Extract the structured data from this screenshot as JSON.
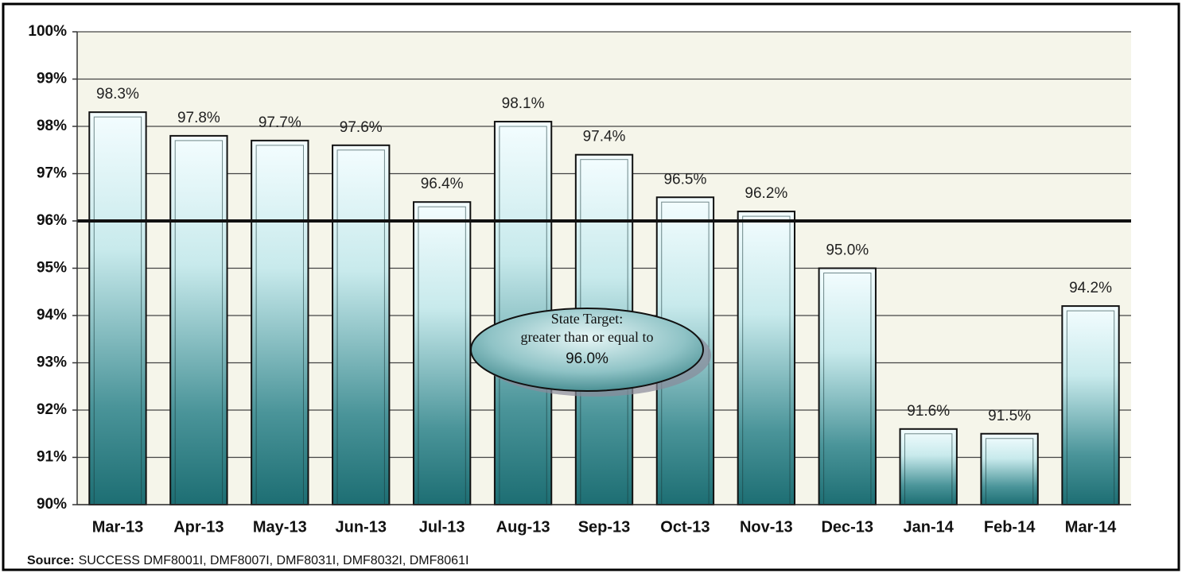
{
  "chart_data": {
    "type": "bar",
    "categories": [
      "Mar-13",
      "Apr-13",
      "May-13",
      "Jun-13",
      "Jul-13",
      "Aug-13",
      "Sep-13",
      "Oct-13",
      "Nov-13",
      "Dec-13",
      "Jan-14",
      "Feb-14",
      "Mar-14"
    ],
    "values": [
      98.3,
      97.8,
      97.7,
      97.6,
      96.4,
      98.1,
      97.4,
      96.5,
      96.2,
      95.0,
      91.6,
      91.5,
      94.2
    ],
    "value_labels": [
      "98.3%",
      "97.8%",
      "97.7%",
      "97.6%",
      "96.4%",
      "98.1%",
      "97.4%",
      "96.5%",
      "96.2%",
      "95.0%",
      "91.6%",
      "91.5%",
      "94.2%"
    ],
    "color": "#1d6e73",
    "ylim": [
      90,
      100
    ],
    "yticks": [
      {
        "value": 90,
        "label": "90%"
      },
      {
        "value": 91,
        "label": "91%"
      },
      {
        "value": 92,
        "label": "92%"
      },
      {
        "value": 93,
        "label": "93%"
      },
      {
        "value": 94,
        "label": "94%"
      },
      {
        "value": 95,
        "label": "95%"
      },
      {
        "value": 96,
        "label": "96%"
      },
      {
        "value": 97,
        "label": "97%"
      },
      {
        "value": 98,
        "label": "98%"
      },
      {
        "value": 99,
        "label": "99%"
      },
      {
        "value": 100,
        "label": "100%"
      }
    ],
    "grid": true,
    "target_line": 96,
    "annotation": [
      "State Target:",
      "greater than or equal to",
      "96.0%"
    ],
    "source_label": "Source:",
    "source_text": "SUCCESS DMF8001I, DMF8007I, DMF8031I, DMF8032I, DMF8061I"
  }
}
